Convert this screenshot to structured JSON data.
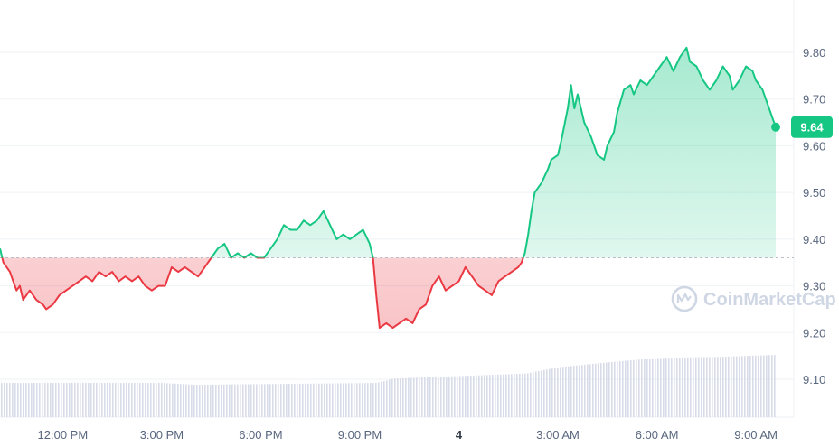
{
  "chart_data": {
    "type": "area",
    "title": "",
    "xlabel": "",
    "ylabel": "",
    "ylim": [
      9.02,
      9.85
    ],
    "yticks": [
      "9.80",
      "9.70",
      "9.60",
      "9.50",
      "9.40",
      "9.30",
      "9.20",
      "9.10"
    ],
    "ytick_values": [
      9.8,
      9.7,
      9.6,
      9.5,
      9.4,
      9.3,
      9.2,
      9.1
    ],
    "xticks": [
      "12:00 PM",
      "3:00 PM",
      "6:00 PM",
      "9:00 PM",
      "4",
      "3:00 AM",
      "6:00 AM",
      "9:00 AM"
    ],
    "xtick_hours": [
      12,
      15,
      18,
      21,
      24,
      27,
      30,
      33
    ],
    "x_range_hours": [
      10.1,
      33.6
    ],
    "baseline": 9.36,
    "current_price": "9.64",
    "colors": {
      "up": "#16c784",
      "down": "#ea3943",
      "volume": "#d8dce8",
      "grid": "#eff2f5"
    },
    "series": [
      {
        "values": [
          [
            10.1,
            9.38
          ],
          [
            10.2,
            9.35
          ],
          [
            10.4,
            9.33
          ],
          [
            10.5,
            9.31
          ],
          [
            10.6,
            9.29
          ],
          [
            10.7,
            9.3
          ],
          [
            10.8,
            9.27
          ],
          [
            11.0,
            9.29
          ],
          [
            11.2,
            9.27
          ],
          [
            11.4,
            9.26
          ],
          [
            11.5,
            9.25
          ],
          [
            11.7,
            9.26
          ],
          [
            11.9,
            9.28
          ],
          [
            12.1,
            9.29
          ],
          [
            12.3,
            9.3
          ],
          [
            12.5,
            9.31
          ],
          [
            12.7,
            9.32
          ],
          [
            12.9,
            9.31
          ],
          [
            13.1,
            9.33
          ],
          [
            13.3,
            9.32
          ],
          [
            13.5,
            9.33
          ],
          [
            13.7,
            9.31
          ],
          [
            13.9,
            9.32
          ],
          [
            14.1,
            9.31
          ],
          [
            14.3,
            9.32
          ],
          [
            14.5,
            9.3
          ],
          [
            14.7,
            9.29
          ],
          [
            14.9,
            9.3
          ],
          [
            15.1,
            9.3
          ],
          [
            15.3,
            9.34
          ],
          [
            15.5,
            9.33
          ],
          [
            15.7,
            9.34
          ],
          [
            15.9,
            9.33
          ],
          [
            16.1,
            9.32
          ],
          [
            16.3,
            9.34
          ],
          [
            16.5,
            9.36
          ],
          [
            16.7,
            9.38
          ],
          [
            16.9,
            9.39
          ],
          [
            17.1,
            9.36
          ],
          [
            17.3,
            9.37
          ],
          [
            17.5,
            9.36
          ],
          [
            17.7,
            9.37
          ],
          [
            17.9,
            9.36
          ],
          [
            18.1,
            9.36
          ],
          [
            18.3,
            9.38
          ],
          [
            18.5,
            9.4
          ],
          [
            18.7,
            9.43
          ],
          [
            18.9,
            9.42
          ],
          [
            19.1,
            9.42
          ],
          [
            19.3,
            9.44
          ],
          [
            19.5,
            9.43
          ],
          [
            19.7,
            9.44
          ],
          [
            19.9,
            9.46
          ],
          [
            20.1,
            9.43
          ],
          [
            20.3,
            9.4
          ],
          [
            20.5,
            9.41
          ],
          [
            20.7,
            9.4
          ],
          [
            20.9,
            9.41
          ],
          [
            21.1,
            9.42
          ],
          [
            21.3,
            9.39
          ],
          [
            21.4,
            9.36
          ],
          [
            21.5,
            9.28
          ],
          [
            21.6,
            9.21
          ],
          [
            21.8,
            9.22
          ],
          [
            22.0,
            9.21
          ],
          [
            22.2,
            9.22
          ],
          [
            22.4,
            9.23
          ],
          [
            22.6,
            9.22
          ],
          [
            22.8,
            9.25
          ],
          [
            23.0,
            9.26
          ],
          [
            23.2,
            9.3
          ],
          [
            23.4,
            9.32
          ],
          [
            23.6,
            9.29
          ],
          [
            23.8,
            9.3
          ],
          [
            24.0,
            9.31
          ],
          [
            24.2,
            9.34
          ],
          [
            24.4,
            9.32
          ],
          [
            24.6,
            9.3
          ],
          [
            24.8,
            9.29
          ],
          [
            25.0,
            9.28
          ],
          [
            25.2,
            9.31
          ],
          [
            25.4,
            9.32
          ],
          [
            25.6,
            9.33
          ],
          [
            25.8,
            9.34
          ],
          [
            25.9,
            9.35
          ],
          [
            26.0,
            9.37
          ],
          [
            26.1,
            9.41
          ],
          [
            26.2,
            9.46
          ],
          [
            26.3,
            9.5
          ],
          [
            26.5,
            9.52
          ],
          [
            26.7,
            9.55
          ],
          [
            26.8,
            9.57
          ],
          [
            27.0,
            9.58
          ],
          [
            27.1,
            9.61
          ],
          [
            27.3,
            9.68
          ],
          [
            27.4,
            9.73
          ],
          [
            27.5,
            9.68
          ],
          [
            27.6,
            9.71
          ],
          [
            27.7,
            9.68
          ],
          [
            27.8,
            9.65
          ],
          [
            28.0,
            9.62
          ],
          [
            28.2,
            9.58
          ],
          [
            28.4,
            9.57
          ],
          [
            28.5,
            9.6
          ],
          [
            28.7,
            9.63
          ],
          [
            28.8,
            9.67
          ],
          [
            29.0,
            9.72
          ],
          [
            29.2,
            9.73
          ],
          [
            29.3,
            9.71
          ],
          [
            29.5,
            9.74
          ],
          [
            29.7,
            9.73
          ],
          [
            29.9,
            9.75
          ],
          [
            30.1,
            9.77
          ],
          [
            30.3,
            9.79
          ],
          [
            30.5,
            9.76
          ],
          [
            30.7,
            9.79
          ],
          [
            30.9,
            9.81
          ],
          [
            31.0,
            9.78
          ],
          [
            31.2,
            9.77
          ],
          [
            31.4,
            9.74
          ],
          [
            31.6,
            9.72
          ],
          [
            31.8,
            9.74
          ],
          [
            32.0,
            9.77
          ],
          [
            32.2,
            9.75
          ],
          [
            32.3,
            9.72
          ],
          [
            32.5,
            9.74
          ],
          [
            32.7,
            9.77
          ],
          [
            32.9,
            9.76
          ],
          [
            33.0,
            9.74
          ],
          [
            33.2,
            9.72
          ],
          [
            33.4,
            9.68
          ],
          [
            33.5,
            9.66
          ],
          [
            33.6,
            9.64
          ]
        ]
      }
    ],
    "volume_note": "relative volume bars along bottom",
    "volume": [
      [
        10.1,
        0.55
      ],
      [
        15.0,
        0.55
      ],
      [
        16.0,
        0.52
      ],
      [
        21.5,
        0.55
      ],
      [
        22.0,
        0.62
      ],
      [
        26.0,
        0.7
      ],
      [
        27.0,
        0.8
      ],
      [
        28.5,
        0.88
      ],
      [
        30.0,
        0.95
      ],
      [
        32.0,
        0.97
      ],
      [
        33.6,
        1.0
      ]
    ]
  },
  "watermark": {
    "text": "CoinMarketCap"
  }
}
